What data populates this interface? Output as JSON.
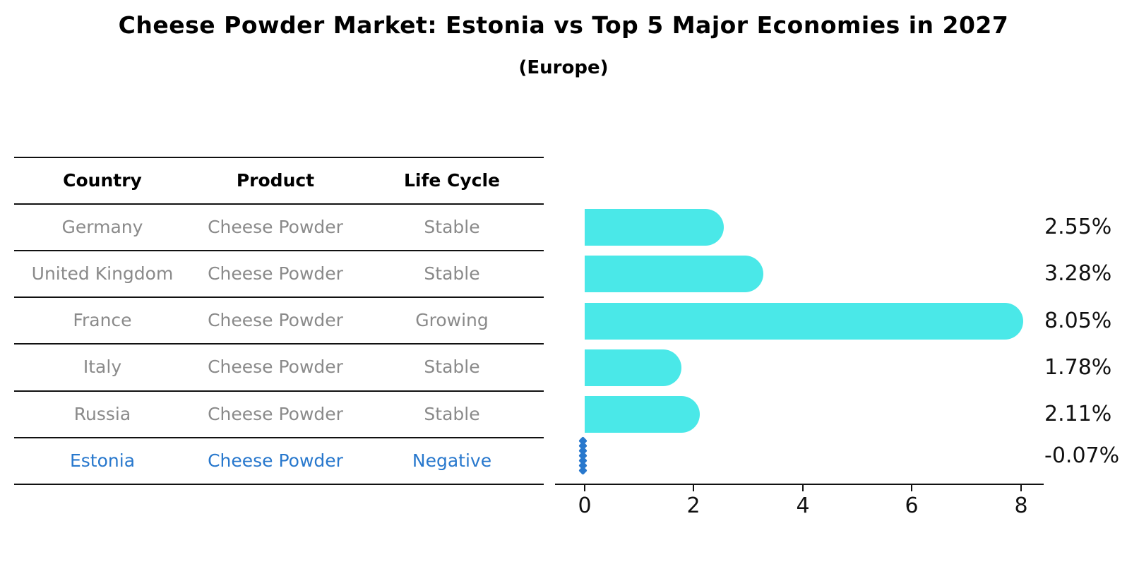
{
  "title": "Cheese Powder Market: Estonia vs Top 5 Major Economies in 2027",
  "subtitle": "(Europe)",
  "table": {
    "headers": {
      "country": "Country",
      "product": "Product",
      "life_cycle": "Life Cycle"
    },
    "rows": [
      {
        "country": "Germany",
        "product": "Cheese Powder",
        "life_cycle": "Stable",
        "highlight": false
      },
      {
        "country": "United Kingdom",
        "product": "Cheese Powder",
        "life_cycle": "Stable",
        "highlight": false
      },
      {
        "country": "France",
        "product": "Cheese Powder",
        "life_cycle": "Growing",
        "highlight": false
      },
      {
        "country": "Italy",
        "product": "Cheese Powder",
        "life_cycle": "Stable",
        "highlight": false
      },
      {
        "country": "Russia",
        "product": "Cheese Powder",
        "life_cycle": "Stable",
        "highlight": false
      },
      {
        "country": "Estonia",
        "product": "Cheese Powder",
        "life_cycle": "Negative",
        "highlight": true
      }
    ]
  },
  "chart_data": {
    "type": "bar",
    "orientation": "horizontal",
    "title": "Cheese Powder Market: Estonia vs Top 5 Major Economies in 2027 (Europe)",
    "categories": [
      "Germany",
      "United Kingdom",
      "France",
      "Italy",
      "Russia",
      "Estonia"
    ],
    "values": [
      2.55,
      3.28,
      8.05,
      1.78,
      2.11,
      -0.07
    ],
    "value_labels": [
      "2.55%",
      "3.28%",
      "8.05%",
      "1.78%",
      "2.11%",
      "-0.07%"
    ],
    "x_ticks": [
      0,
      2,
      4,
      6,
      8
    ],
    "x_tick_labels": [
      "0",
      "2",
      "4",
      "6",
      "8"
    ],
    "xlim": [
      -0.4,
      8.4
    ],
    "grid": false,
    "legend": false,
    "highlight_index": 5,
    "highlight_marker": "dotted-diamond-line-at-zero"
  },
  "colors": {
    "bar": "#4AE8E8",
    "highlight": "#2878CD",
    "row_text": "#8A8A8A",
    "header_text": "#000000",
    "axis": "#111111",
    "label_text": "#111111"
  }
}
